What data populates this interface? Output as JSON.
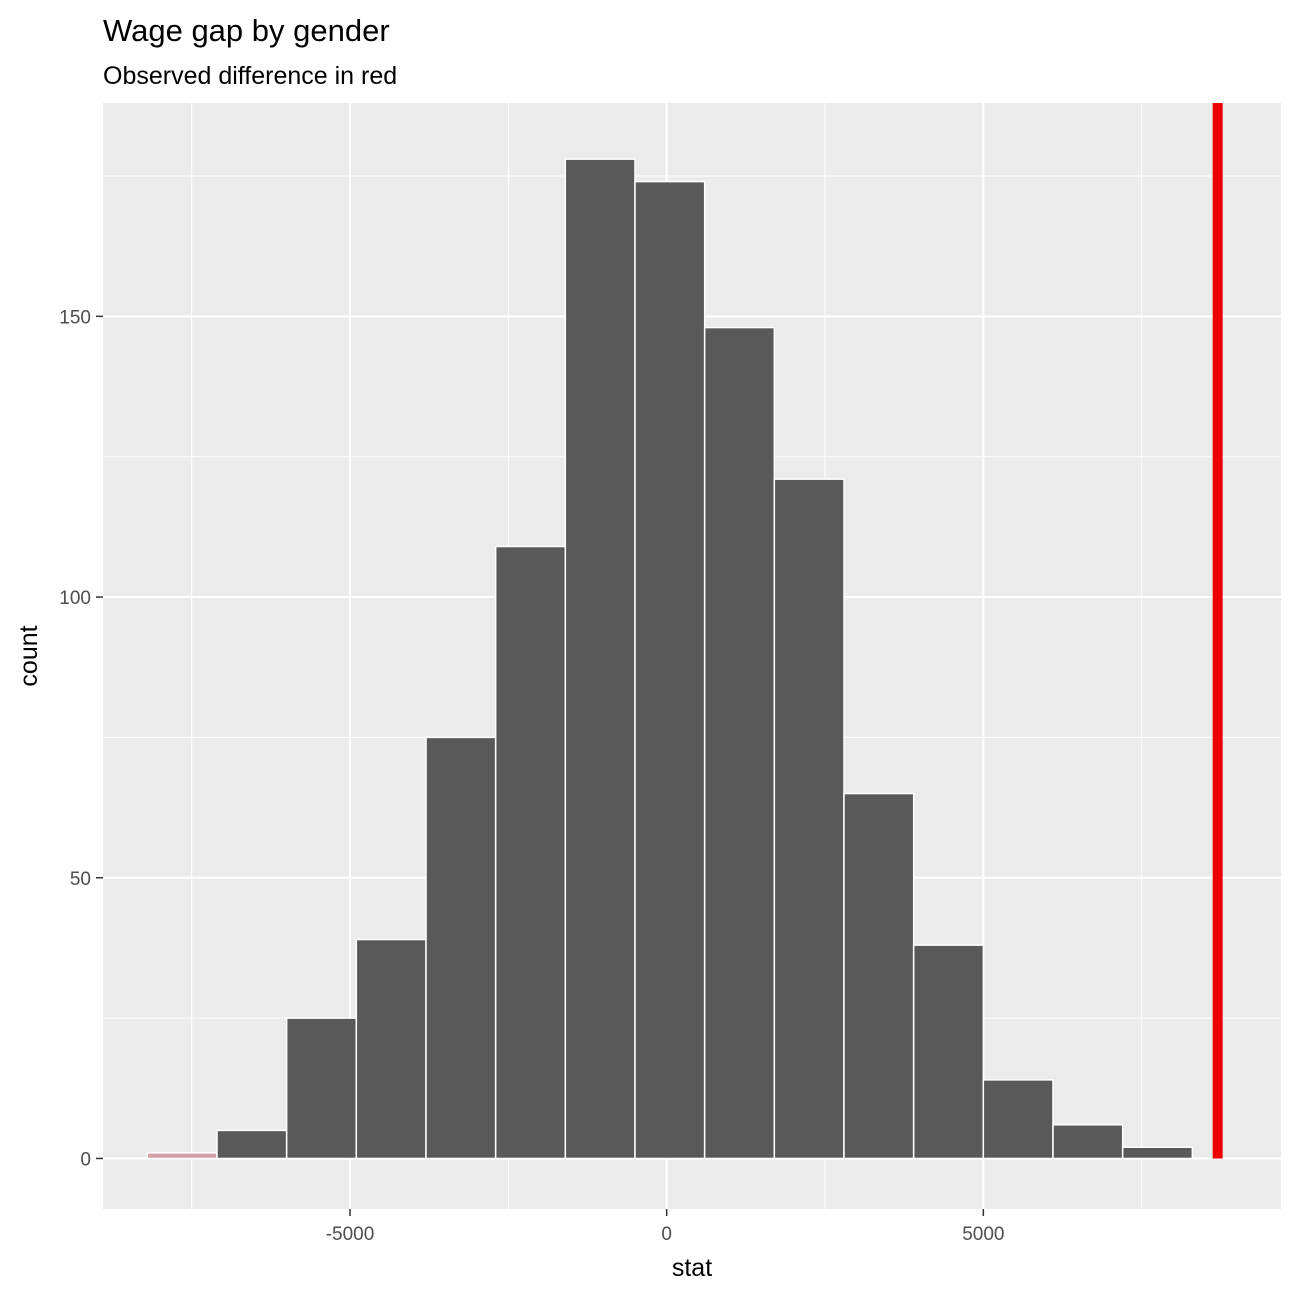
{
  "chart_data": {
    "type": "bar",
    "title": "Wage gap by gender",
    "subtitle": "Observed difference in red",
    "xlabel": "stat",
    "ylabel": "count",
    "xlim": [
      -8900,
      9700
    ],
    "ylim": [
      -9,
      188
    ],
    "x_ticks": [
      -5000,
      0,
      5000
    ],
    "x_tick_labels": [
      "-5000",
      "0",
      "5000"
    ],
    "y_ticks": [
      0,
      50,
      100,
      150
    ],
    "y_tick_labels": [
      "0",
      "50",
      "100",
      "150"
    ],
    "grid": true,
    "legend": "none",
    "bins": [
      {
        "x_start": -8200,
        "x_end": -7100,
        "count": 1,
        "highlight": true
      },
      {
        "x_start": -7100,
        "x_end": -6000,
        "count": 5
      },
      {
        "x_start": -6000,
        "x_end": -4900,
        "count": 25
      },
      {
        "x_start": -4900,
        "x_end": -3800,
        "count": 39
      },
      {
        "x_start": -3800,
        "x_end": -2700,
        "count": 75
      },
      {
        "x_start": -2700,
        "x_end": -1600,
        "count": 109
      },
      {
        "x_start": -1600,
        "x_end": -500,
        "count": 178
      },
      {
        "x_start": -500,
        "x_end": 600,
        "count": 174
      },
      {
        "x_start": 600,
        "x_end": 1700,
        "count": 148
      },
      {
        "x_start": 1700,
        "x_end": 2800,
        "count": 121
      },
      {
        "x_start": 2800,
        "x_end": 3900,
        "count": 65
      },
      {
        "x_start": 3900,
        "x_end": 5000,
        "count": 38
      },
      {
        "x_start": 5000,
        "x_end": 6100,
        "count": 14
      },
      {
        "x_start": 6100,
        "x_end": 7200,
        "count": 6
      },
      {
        "x_start": 7200,
        "x_end": 8300,
        "count": 2
      }
    ],
    "observed_value": 8700,
    "colors": {
      "panel": "#ebebeb",
      "grid": "#ffffff",
      "bar_fill": "#595959",
      "bar_border": "#ffffff",
      "highlight_fill": "#d4a0a6",
      "observed_line": "#ee0000"
    }
  }
}
